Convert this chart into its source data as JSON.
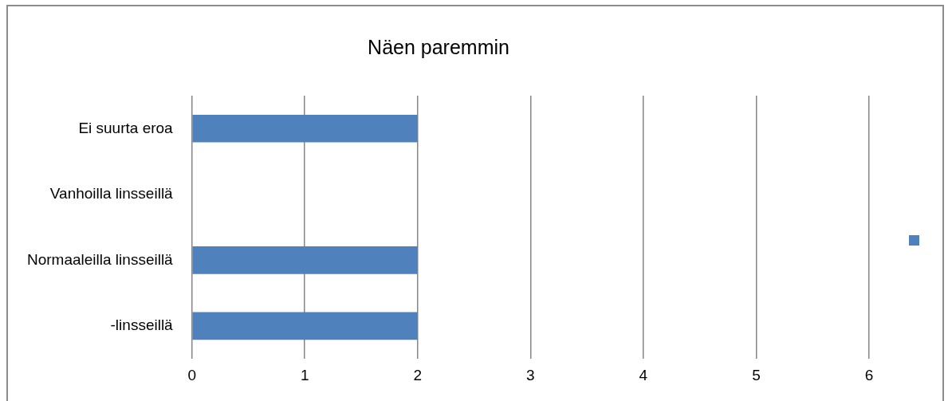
{
  "chart_data": {
    "type": "bar",
    "orientation": "horizontal",
    "title": "Näen paremmin",
    "categories": [
      "Ei suurta eroa",
      "Vanhoilla linsseillä",
      "Normaaleilla linsseillä",
      "-linsseillä"
    ],
    "series": [
      {
        "color": "#4f81bd",
        "values": [
          2,
          0,
          2,
          2
        ]
      }
    ],
    "xlim": [
      0,
      6
    ],
    "xticks": [
      0,
      1,
      2,
      3,
      4,
      5,
      6
    ],
    "grid": "x"
  }
}
